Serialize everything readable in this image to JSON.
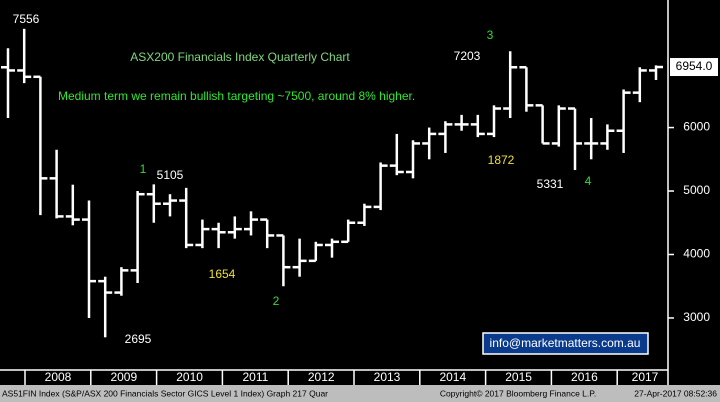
{
  "chart_data": {
    "type": "ohlc",
    "title": "ASX200 Financials Index Quarterly Chart",
    "subtitle": "Medium term we remain bullish targeting ~7500, around 8% higher.",
    "color": "#ffffff",
    "open": [
      6950,
      6900,
      6800,
      5200,
      4600,
      4550,
      3580,
      3400,
      3750,
      4950,
      4800,
      4850,
      4150,
      4400,
      4350,
      4400,
      4550,
      4300,
      3800,
      3900,
      4150,
      4200,
      4500,
      4750,
      5400,
      5300,
      5750,
      5900,
      6050,
      6050,
      5900,
      6300,
      6950,
      6350,
      5750,
      6300,
      5750,
      5750,
      5950,
      6550,
      6900
    ],
    "high": [
      7250,
      7556,
      6800,
      5650,
      5100,
      4850,
      3650,
      3800,
      5000,
      5105,
      4950,
      5050,
      4550,
      4500,
      4600,
      4680,
      4550,
      4300,
      4250,
      4200,
      4250,
      4550,
      4800,
      5450,
      5900,
      5800,
      6000,
      6100,
      6200,
      6200,
      6350,
      7203,
      6950,
      6350,
      6350,
      6300,
      6150,
      6050,
      6600,
      6950,
      6980
    ],
    "low": [
      6150,
      6700,
      4620,
      4570,
      4460,
      3000,
      2695,
      3350,
      3550,
      4500,
      4600,
      4100,
      4100,
      4100,
      4250,
      4300,
      4100,
      3500,
      3650,
      3900,
      3950,
      4200,
      4450,
      4700,
      5250,
      5200,
      5500,
      5600,
      5950,
      5850,
      5850,
      6150,
      6250,
      5750,
      5700,
      5331,
      5500,
      5650,
      5600,
      6400,
      6750
    ],
    "close": [
      6900,
      6800,
      5200,
      4600,
      4550,
      3580,
      3400,
      3750,
      4950,
      4800,
      4850,
      4150,
      4400,
      4350,
      4400,
      4550,
      4300,
      3800,
      3900,
      4150,
      4200,
      4500,
      4750,
      5400,
      5300,
      5750,
      5900,
      6050,
      6050,
      5900,
      6300,
      6950,
      6350,
      5750,
      6300,
      5750,
      5750,
      5950,
      6550,
      6900,
      6954
    ],
    "ylim": [
      2180,
      8010
    ],
    "yticks": [
      3000,
      4000,
      5000,
      6000
    ],
    "years": [
      "2008",
      "2009",
      "2010",
      "2011",
      "2012",
      "2013",
      "2014",
      "2015",
      "2016",
      "2017"
    ],
    "last_price": {
      "value": 6954,
      "label": "6954.0"
    },
    "annotations": [
      {
        "text": "7556",
        "color": "#ffffff"
      },
      {
        "text": "1",
        "color": "#33dd33"
      },
      {
        "text": "5105",
        "color": "#ffffff"
      },
      {
        "text": "1654",
        "color": "#f0e030"
      },
      {
        "text": "2",
        "color": "#33dd33"
      },
      {
        "text": "2695",
        "color": "#ffffff"
      },
      {
        "text": "7203",
        "color": "#ffffff"
      },
      {
        "text": "3",
        "color": "#33dd33"
      },
      {
        "text": "1872",
        "color": "#f0e030"
      },
      {
        "text": "5331",
        "color": "#ffffff"
      },
      {
        "text": "4",
        "color": "#33dd33"
      }
    ],
    "watermark": "info@marketmatters.com.au",
    "footer_left": "AS51FIN Index (S&P/ASX 200 Financials Sector GICS Level 1 Index) Graph 217  Quar",
    "footer_mid": "Copyright© 2017 Bloomberg Finance L.P.",
    "footer_right": "27-Apr-2017 08:52:36"
  }
}
